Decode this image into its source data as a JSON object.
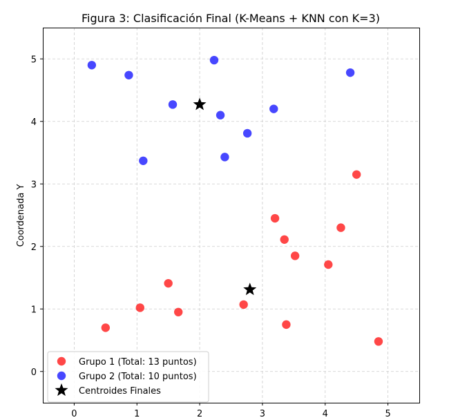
{
  "chart_data": {
    "type": "scatter",
    "title": "Figura 3: Clasificación Final (K-Means + KNN con K=3)",
    "xlabel": "",
    "ylabel": "Coordenada Y",
    "xlim": [
      -0.5,
      5.5
    ],
    "ylim": [
      -0.5,
      5.5
    ],
    "xticks": [
      0,
      1,
      2,
      3,
      4,
      5
    ],
    "yticks": [
      0,
      1,
      2,
      3,
      4,
      5
    ],
    "grid": true,
    "legend_position": "lower-left",
    "series": [
      {
        "name": "Grupo 1 (Total: 13 puntos)",
        "color": "#ff0000",
        "marker": "circle",
        "points": [
          [
            0.5,
            0.7
          ],
          [
            1.05,
            1.02
          ],
          [
            1.5,
            1.41
          ],
          [
            1.66,
            0.95
          ],
          [
            2.7,
            1.07
          ],
          [
            3.2,
            2.45
          ],
          [
            3.35,
            2.11
          ],
          [
            3.38,
            0.75
          ],
          [
            3.52,
            1.85
          ],
          [
            4.05,
            1.71
          ],
          [
            4.25,
            2.3
          ],
          [
            4.5,
            3.15
          ],
          [
            4.85,
            0.48
          ]
        ]
      },
      {
        "name": "Grupo 2 (Total: 10 puntos)",
        "color": "#0000ff",
        "marker": "circle",
        "points": [
          [
            0.28,
            4.9
          ],
          [
            0.87,
            4.74
          ],
          [
            1.1,
            3.37
          ],
          [
            1.57,
            4.27
          ],
          [
            2.23,
            4.98
          ],
          [
            2.33,
            4.1
          ],
          [
            2.4,
            3.43
          ],
          [
            2.76,
            3.81
          ],
          [
            3.18,
            4.2
          ],
          [
            4.4,
            4.78
          ]
        ]
      },
      {
        "name": "Centroides Finales",
        "color": "#000000",
        "marker": "star",
        "points": [
          [
            2.0,
            4.27
          ],
          [
            2.8,
            1.31
          ]
        ]
      }
    ]
  }
}
